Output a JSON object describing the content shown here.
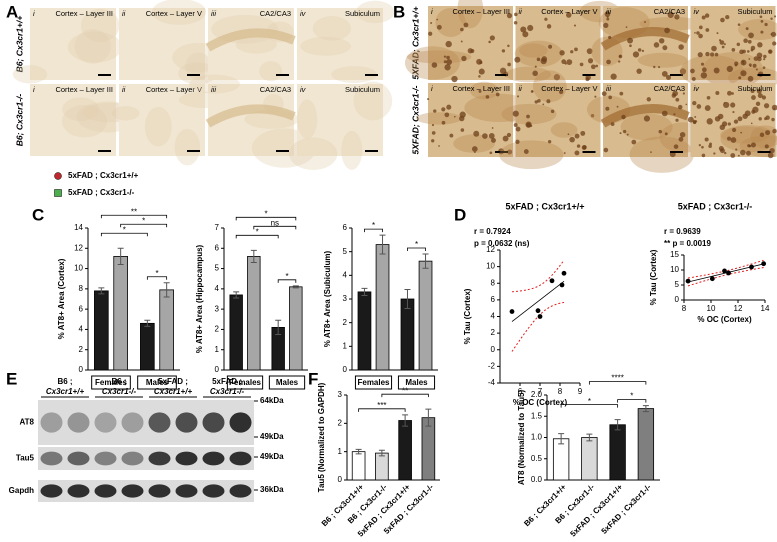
{
  "panel_letters": [
    "A",
    "B",
    "C",
    "D",
    "E",
    "F"
  ],
  "panel_a": {
    "rows": [
      "B6; Cx3cr1+/+",
      "B6; Cx3cr1-/-"
    ],
    "tiles": [
      {
        "numeral": "i",
        "label": "Cortex – Layer III"
      },
      {
        "numeral": "ii",
        "label": "Cortex – Layer V"
      },
      {
        "numeral": "iii",
        "label": "CA2/CA3"
      },
      {
        "numeral": "iv",
        "label": "Subiculum"
      }
    ]
  },
  "panel_b": {
    "rows": [
      "5XFAD; Cx3cr1+/+",
      "5XFAD; Cx3cr1-/-"
    ],
    "tiles": [
      {
        "numeral": "i",
        "label": "Cortex – Layer III"
      },
      {
        "numeral": "ii",
        "label": "Cortex – Layer V"
      },
      {
        "numeral": "iii",
        "label": "CA2/CA3"
      },
      {
        "numeral": "iv",
        "label": "Subiculum"
      }
    ]
  },
  "blot": {
    "columns": [
      {
        "line1": "B6 ;",
        "line2": "Cx3cr1+/+"
      },
      {
        "line1": "B6 ;",
        "line2": "Cx3cr1-/-"
      },
      {
        "line1": "5xFAD ;",
        "line2": "Cx3cr1+/+"
      },
      {
        "line1": "5xFAD ;",
        "line2": "Cx3cr1-/-"
      }
    ],
    "rows": [
      "AT8",
      "Tau5",
      "Gapdh"
    ],
    "markers": [
      "64kDa",
      "49kDa",
      "49kDa",
      "36kDa"
    ]
  },
  "chart_data": [
    {
      "type": "bar",
      "ylabel": "% AT8+ Area (Cortex)",
      "categories": [
        "Females",
        "Males"
      ],
      "series": [
        {
          "name": "5xFAD ; Cx3cr1+/+",
          "color": "#1a1a1a",
          "marker_color": "#c0282d",
          "values": [
            7.8,
            4.6
          ],
          "errors": [
            0.3,
            0.3
          ]
        },
        {
          "name": "5xFAD ; Cx3cr1-/-",
          "color": "#a6a6a6",
          "marker_color": "#4cae4c",
          "values": [
            11.2,
            7.9
          ],
          "errors": [
            0.8,
            0.7
          ]
        }
      ],
      "ylim": [
        0,
        14
      ],
      "yticks": [
        0,
        2,
        4,
        6,
        8,
        10,
        12,
        14
      ],
      "comparisons": [
        {
          "label": "*",
          "between": [
            2,
            3
          ]
        },
        {
          "label": "*",
          "between": [
            0,
            2
          ]
        },
        {
          "label": "*",
          "between": [
            1,
            3
          ]
        },
        {
          "label": "**",
          "between": [
            0,
            3
          ]
        }
      ]
    },
    {
      "type": "bar",
      "ylabel": "% AT8+ Area (Hippocampus)",
      "categories": [
        "Females",
        "Males"
      ],
      "series": [
        {
          "color": "#1a1a1a",
          "values": [
            3.7,
            2.1
          ],
          "errors": [
            0.15,
            0.35
          ]
        },
        {
          "color": "#a6a6a6",
          "values": [
            5.6,
            4.1
          ],
          "errors": [
            0.3,
            0.05
          ]
        }
      ],
      "ylim": [
        0,
        7
      ],
      "yticks": [
        0,
        1,
        2,
        3,
        4,
        5,
        6,
        7
      ],
      "comparisons": [
        {
          "label": "*",
          "between": [
            2,
            3
          ]
        },
        {
          "label": "*",
          "between": [
            0,
            2
          ]
        },
        {
          "label": "ns",
          "between": [
            1,
            3
          ]
        },
        {
          "label": "*",
          "between": [
            0,
            3
          ]
        }
      ]
    },
    {
      "type": "bar",
      "ylabel": "% AT8+ Area (Subiculum)",
      "categories": [
        "Females",
        "Males"
      ],
      "series": [
        {
          "color": "#1a1a1a",
          "values": [
            3.3,
            3.0
          ],
          "errors": [
            0.15,
            0.4
          ]
        },
        {
          "color": "#a6a6a6",
          "values": [
            5.3,
            4.6
          ],
          "errors": [
            0.4,
            0.3
          ]
        }
      ],
      "ylim": [
        0,
        6
      ],
      "yticks": [
        0,
        1,
        2,
        3,
        4,
        5,
        6
      ],
      "comparisons": [
        {
          "label": "*",
          "between": [
            0,
            1
          ]
        },
        {
          "label": "*",
          "between": [
            2,
            3
          ]
        }
      ]
    },
    {
      "type": "scatter",
      "title": "5xFAD ; Cx3cr1+/+",
      "annotations": [
        "r = 0.7924",
        "p = 0.0632 (ns)"
      ],
      "xlabel": "% OC (Cortex)",
      "ylabel": "% Tau (Cortex)",
      "x": [
        5.6,
        6.9,
        7.0,
        7.6,
        8.1,
        8.2
      ],
      "values": [
        4.6,
        4.7,
        4.0,
        8.3,
        7.8,
        9.2
      ],
      "xlim": [
        5,
        9
      ],
      "xticks": [
        6,
        7,
        8,
        9
      ],
      "ylim": [
        -4,
        12
      ],
      "yticks": [
        -4,
        -2,
        0,
        2,
        4,
        6,
        8,
        10,
        12
      ],
      "color": "#000000",
      "regression_line": true,
      "confidence_band_color": "#e02020"
    },
    {
      "type": "scatter",
      "title": "5xFAD ; Cx3cr1-/-",
      "annotations": [
        "r = 0.9639",
        "** p = 0.0019"
      ],
      "xlabel": "% OC (Cortex)",
      "ylabel": "% Tau (Cortex)",
      "x": [
        8.3,
        10.1,
        11.0,
        11.3,
        13.0,
        13.9
      ],
      "values": [
        6.3,
        7.1,
        9.7,
        9.0,
        11.0,
        12.1
      ],
      "xlim": [
        8,
        14
      ],
      "xticks": [
        8,
        10,
        12,
        14
      ],
      "ylim": [
        0,
        15
      ],
      "yticks": [
        0,
        5,
        10,
        15
      ],
      "color": "#000000",
      "regression_line": true,
      "confidence_band_color": "#e02020"
    },
    {
      "type": "bar",
      "ylabel": "Tau5 (Normalized to GAPDH)",
      "categories": [
        "B6 ; Cx3cr1+/+",
        "B6 ; Cx3cr1-/-",
        "5xFAD ; Cx3cr1+/+",
        "5xFAD ; Cx3cr1-/-"
      ],
      "values": [
        1.0,
        0.95,
        2.1,
        2.2
      ],
      "errors": [
        0.08,
        0.1,
        0.2,
        0.3
      ],
      "colors": [
        "#ffffff",
        "#d9d9d9",
        "#1a1a1a",
        "#7f7f7f"
      ],
      "ylim": [
        0,
        3
      ],
      "yticks": [
        0,
        1,
        2,
        3
      ],
      "comparisons": [
        {
          "label": "***",
          "between": [
            0,
            2
          ]
        },
        {
          "label": "**",
          "between": [
            1,
            3
          ]
        }
      ]
    },
    {
      "type": "bar",
      "ylabel": "AT8 (Normalized to Tau5)",
      "categories": [
        "B6 ; Cx3cr1+/+",
        "B6 ; Cx3cr1-/-",
        "5xFAD ; Cx3cr1+/+",
        "5xFAD ; Cx3cr1-/-"
      ],
      "values": [
        0.97,
        1.0,
        1.3,
        1.68
      ],
      "errors": [
        0.12,
        0.08,
        0.12,
        0.07
      ],
      "colors": [
        "#ffffff",
        "#d9d9d9",
        "#1a1a1a",
        "#7f7f7f"
      ],
      "ylim": [
        0,
        2
      ],
      "yticks": [
        {
          "value": 0,
          "label": "0.0"
        },
        0.5,
        {
          "value": 1,
          "label": "1.0"
        },
        1.5,
        {
          "value": 2,
          "label": "2.0"
        }
      ],
      "comparisons": [
        {
          "label": "*",
          "between": [
            2,
            3
          ]
        },
        {
          "label": "*",
          "between": [
            0,
            2
          ]
        },
        {
          "label": "****",
          "between": [
            1,
            3
          ]
        }
      ]
    }
  ]
}
